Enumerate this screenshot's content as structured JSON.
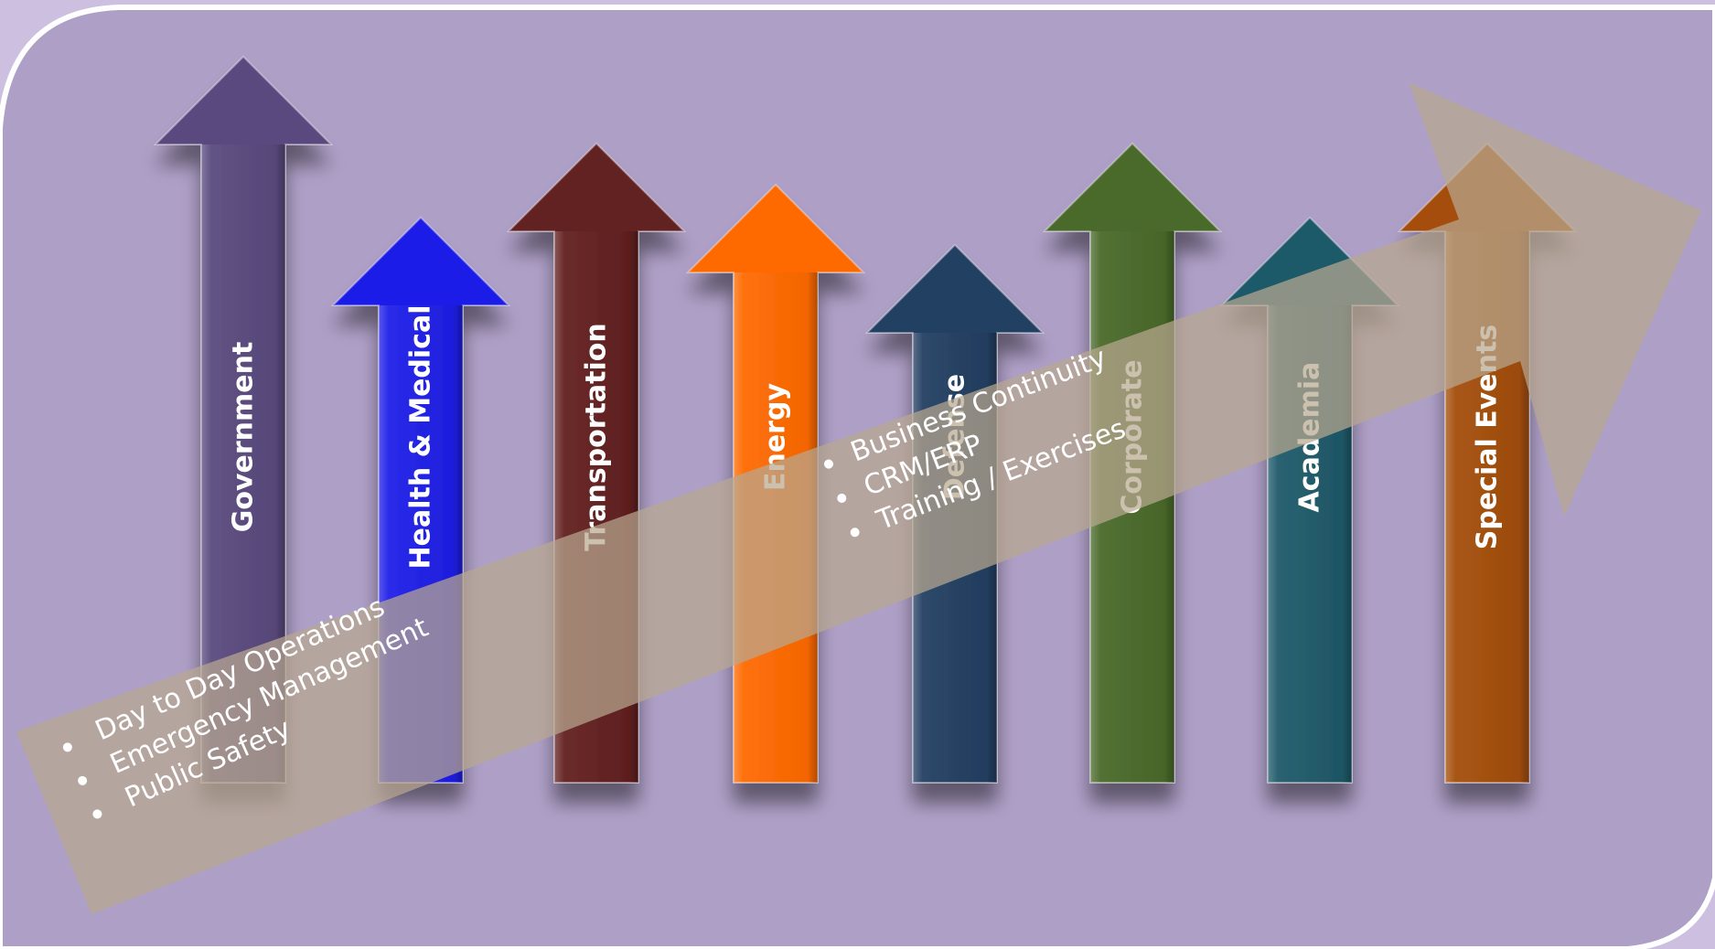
{
  "sectors": [
    {
      "label": "Government",
      "color": "#5a4a7e",
      "label_color": "#ffffff"
    },
    {
      "label": "Health & Medical",
      "color": "#1f1fe8",
      "label_color": "#ffffff"
    },
    {
      "label": "Transportation",
      "color": "#632020",
      "label_color": "#ffffff"
    },
    {
      "label": "Energy",
      "color": "#ff6a00",
      "label_color": "#ffffff"
    },
    {
      "label": "Defense",
      "color": "#233f62",
      "label_color": "#ffffff"
    },
    {
      "label": "Corporate",
      "color": "#4a6a2a",
      "label_color": "#ffffff"
    },
    {
      "label": "Academia",
      "color": "#1f5a6a",
      "label_color": "#ffffff"
    },
    {
      "label": "Special  Events",
      "color": "#a44e0a",
      "label_color": "#ffffff"
    }
  ],
  "progression_arrow": {
    "lower_items": [
      "Day to Day Operations",
      "Emergency Management",
      "Public Safety"
    ],
    "upper_items": [
      "Business Continuity",
      "CRM/ERP",
      "Training / Exercises"
    ]
  },
  "colors": {
    "page_background": "#cdbfe0",
    "panel_background": "#ae9fc6",
    "overlay_arrow": "#b8a890",
    "overlay_text": "#ffffff"
  }
}
